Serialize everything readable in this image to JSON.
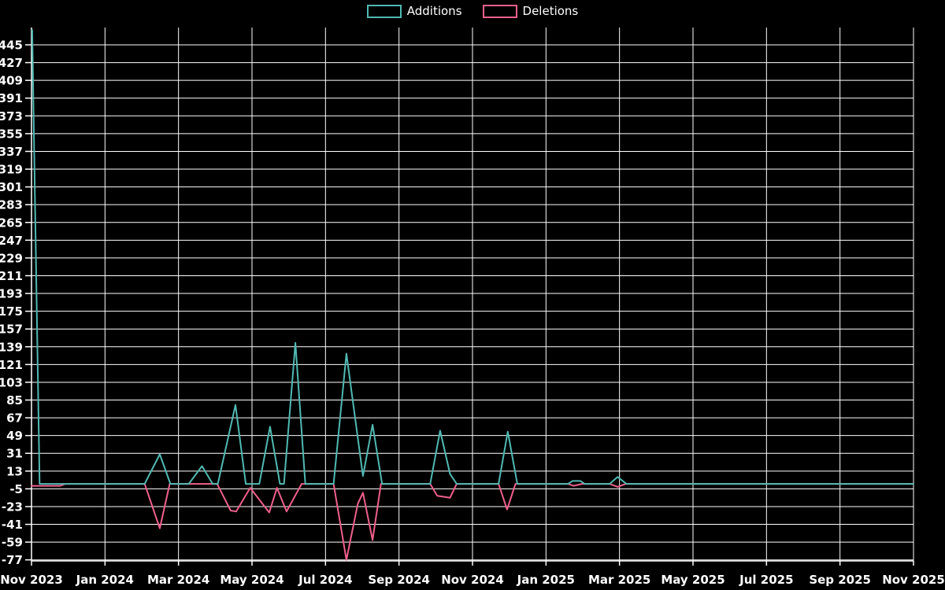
{
  "page": {
    "background_color": "#000000",
    "grid_color": "#ffffff",
    "text_color": "#ffffff"
  },
  "legend": {
    "position": "top-center",
    "items": [
      {
        "label": "Additions",
        "color": "#50b9b2"
      },
      {
        "label": "Deletions",
        "color": "#f0608c"
      }
    ]
  },
  "chart_data": {
    "type": "line",
    "title": "",
    "xlabel": "",
    "ylabel": "",
    "grid": "on",
    "legend_position": "top-center",
    "x_axis": {
      "unit": "months since Nov 2023",
      "range": [
        0,
        24
      ],
      "tick_positions": [
        0,
        2,
        4,
        6,
        8,
        10,
        12,
        14,
        16,
        18,
        20,
        22,
        24
      ],
      "tick_labels": [
        "Nov 2023",
        "Jan 2024",
        "Mar 2024",
        "May 2024",
        "Jul 2024",
        "Sep 2024",
        "Nov 2024",
        "Jan 2025",
        "Mar 2025",
        "May 2025",
        "Jul 2025",
        "Sep 2025",
        "Nov 2025"
      ]
    },
    "y_axis": {
      "tick_min": -77,
      "tick_max": 445,
      "tick_step": 18,
      "range": [
        -78.5,
        463
      ]
    },
    "series": [
      {
        "name": "Additions",
        "color": "#50b9b2",
        "points": [
          [
            0.02,
            460
          ],
          [
            0.22,
            0
          ],
          [
            3.08,
            0
          ],
          [
            3.49,
            30
          ],
          [
            3.78,
            0
          ],
          [
            4.28,
            0
          ],
          [
            4.64,
            18
          ],
          [
            4.93,
            0
          ],
          [
            5.07,
            0
          ],
          [
            5.55,
            80
          ],
          [
            5.83,
            0
          ],
          [
            6.2,
            0
          ],
          [
            6.49,
            58
          ],
          [
            6.76,
            0
          ],
          [
            6.87,
            0
          ],
          [
            7.18,
            143
          ],
          [
            7.45,
            0
          ],
          [
            8.22,
            0
          ],
          [
            8.57,
            132
          ],
          [
            9.02,
            8
          ],
          [
            9.28,
            60
          ],
          [
            9.54,
            0
          ],
          [
            10.85,
            0
          ],
          [
            11.12,
            54
          ],
          [
            11.39,
            10
          ],
          [
            11.57,
            0
          ],
          [
            12.71,
            0
          ],
          [
            12.96,
            53
          ],
          [
            13.22,
            0
          ],
          [
            14.6,
            0
          ],
          [
            14.72,
            3
          ],
          [
            14.94,
            3
          ],
          [
            15.05,
            0
          ],
          [
            15.73,
            0
          ],
          [
            15.95,
            7
          ],
          [
            16.19,
            0
          ],
          [
            24,
            0
          ]
        ]
      },
      {
        "name": "Deletions",
        "color": "#f0608c",
        "points": [
          [
            0,
            -2
          ],
          [
            0.78,
            -2
          ],
          [
            0.92,
            0
          ],
          [
            3.08,
            0
          ],
          [
            3.49,
            -45
          ],
          [
            3.76,
            0
          ],
          [
            5.05,
            0
          ],
          [
            5.42,
            -27
          ],
          [
            5.57,
            -28
          ],
          [
            5.95,
            -4
          ],
          [
            6.47,
            -29
          ],
          [
            6.68,
            -4
          ],
          [
            6.94,
            -28
          ],
          [
            7.35,
            0
          ],
          [
            8.22,
            0
          ],
          [
            8.57,
            -77
          ],
          [
            8.88,
            -20
          ],
          [
            9.02,
            -9
          ],
          [
            9.28,
            -57
          ],
          [
            9.51,
            0
          ],
          [
            10.85,
            0
          ],
          [
            11.04,
            -12
          ],
          [
            11.39,
            -14
          ],
          [
            11.57,
            0
          ],
          [
            12.71,
            0
          ],
          [
            12.94,
            -26
          ],
          [
            13.17,
            0
          ],
          [
            14.6,
            0
          ],
          [
            14.75,
            -2
          ],
          [
            14.98,
            0
          ],
          [
            15.73,
            0
          ],
          [
            15.95,
            -3
          ],
          [
            16.17,
            0
          ],
          [
            24,
            0
          ]
        ]
      }
    ]
  }
}
